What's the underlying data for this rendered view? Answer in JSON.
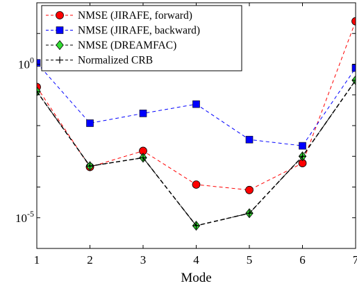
{
  "chart_data": {
    "type": "line",
    "xlabel": "Mode",
    "ylabel": "",
    "x": [
      1,
      2,
      3,
      4,
      5,
      6,
      7
    ],
    "xlim": [
      1,
      7
    ],
    "yscale": "log",
    "ylim": [
      1e-06,
      100
    ],
    "y_ticks": [
      {
        "value": 1,
        "base": "10",
        "exp": "0"
      },
      {
        "value": 1e-05,
        "base": "10",
        "exp": "-5"
      }
    ],
    "grid": false,
    "legend_position": "top-left",
    "series": [
      {
        "name": "NMSE (JIRAFE, forward)",
        "color": "#ff0000",
        "marker": "circle",
        "marker_fill": "#ff0000",
        "line_style": "dashed",
        "values": [
          0.18,
          0.00045,
          0.0015,
          0.00012,
          8e-05,
          0.0006,
          25
        ]
      },
      {
        "name": "NMSE (JIRAFE, backward)",
        "color": "#0000ff",
        "marker": "square",
        "marker_fill": "#0000ff",
        "line_style": "dashed",
        "values": [
          1.1,
          0.012,
          0.025,
          0.05,
          0.0035,
          0.0022,
          0.75
        ]
      },
      {
        "name": "NMSE (DREAMFAC)",
        "color": "#000000",
        "marker": "diamond",
        "marker_fill": "#33dd33",
        "line_style": "dashed",
        "values": [
          0.13,
          0.00048,
          0.0009,
          5.5e-06,
          1.4e-05,
          0.001,
          0.3
        ]
      },
      {
        "name": "Normalized CRB",
        "color": "#000000",
        "marker": "plus",
        "marker_fill": "#000000",
        "line_style": "dashed",
        "values": [
          0.13,
          0.00048,
          0.0009,
          5.5e-06,
          1.4e-05,
          0.001,
          0.3
        ]
      }
    ]
  }
}
